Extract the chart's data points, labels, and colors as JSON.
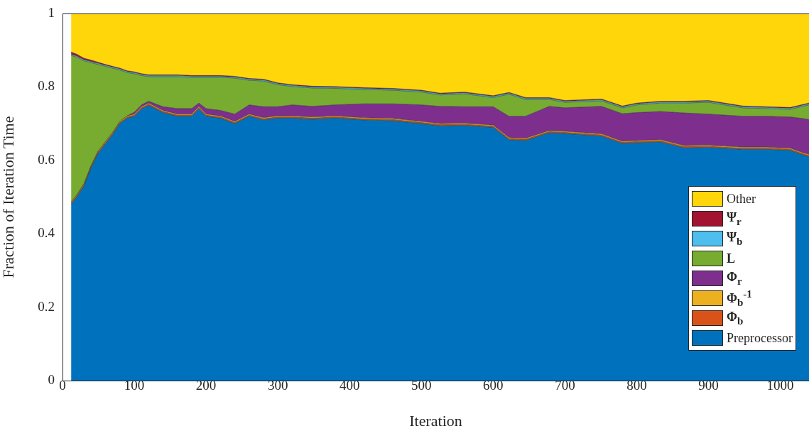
{
  "chart_data": {
    "type": "area",
    "stacked": true,
    "xlabel": "Iteration",
    "ylabel": "Fraction of Iteration Time",
    "x": [
      12,
      20,
      30,
      40,
      50,
      60,
      70,
      80,
      90,
      100,
      110,
      120,
      140,
      160,
      180,
      190,
      200,
      220,
      240,
      260,
      280,
      300,
      320,
      348,
      380,
      420,
      460,
      500,
      526,
      560,
      600,
      622,
      645,
      678,
      700,
      751,
      780,
      800,
      833,
      866,
      900,
      948,
      980,
      1014,
      1031,
      1040
    ],
    "xlim": [
      0,
      1040
    ],
    "xticks": [
      0,
      100,
      200,
      300,
      400,
      500,
      600,
      700,
      800,
      900,
      1000
    ],
    "ylim": [
      0,
      1
    ],
    "yticks": [
      0,
      0.2,
      0.4,
      0.6,
      0.8,
      1
    ],
    "legend": "right",
    "grid": false,
    "series": [
      {
        "name": "Preprocessor",
        "color": "#0072bd",
        "values": [
          0.48,
          0.5,
          0.53,
          0.58,
          0.62,
          0.645,
          0.67,
          0.7,
          0.715,
          0.72,
          0.74,
          0.75,
          0.73,
          0.72,
          0.72,
          0.74,
          0.72,
          0.715,
          0.7,
          0.72,
          0.71,
          0.715,
          0.715,
          0.712,
          0.715,
          0.71,
          0.708,
          0.7,
          0.694,
          0.695,
          0.69,
          0.656,
          0.654,
          0.675,
          0.673,
          0.666,
          0.646,
          0.648,
          0.65,
          0.634,
          0.635,
          0.63,
          0.63,
          0.627,
          0.615,
          0.61
        ]
      },
      {
        "name": "Φ$_{b}$",
        "color": "#d95319",
        "values": [
          0.003,
          0.003,
          0.003,
          0.003,
          0.003,
          0.003,
          0.003,
          0.003,
          0.003,
          0.003,
          0.003,
          0.003,
          0.003,
          0.003,
          0.003,
          0.003,
          0.003,
          0.003,
          0.003,
          0.003,
          0.003,
          0.003,
          0.003,
          0.003,
          0.003,
          0.003,
          0.003,
          0.003,
          0.003,
          0.003,
          0.003,
          0.003,
          0.003,
          0.003,
          0.003,
          0.003,
          0.003,
          0.003,
          0.003,
          0.003,
          0.003,
          0.003,
          0.003,
          0.003,
          0.003,
          0.003
        ]
      },
      {
        "name": "Φ$_{b}$$^{-1}$",
        "color": "#edb120",
        "values": [
          0.003,
          0.003,
          0.003,
          0.003,
          0.003,
          0.003,
          0.003,
          0.003,
          0.003,
          0.003,
          0.003,
          0.003,
          0.003,
          0.003,
          0.003,
          0.003,
          0.003,
          0.003,
          0.003,
          0.003,
          0.003,
          0.003,
          0.003,
          0.003,
          0.003,
          0.003,
          0.003,
          0.003,
          0.003,
          0.003,
          0.003,
          0.003,
          0.003,
          0.003,
          0.003,
          0.003,
          0.003,
          0.003,
          0.003,
          0.003,
          0.003,
          0.003,
          0.003,
          0.003,
          0.003,
          0.003
        ]
      },
      {
        "name": "Φ$_{r}$",
        "color": "#7e2f8e",
        "values": [
          0,
          0,
          0,
          0,
          0,
          0,
          0,
          0,
          0,
          0.005,
          0.005,
          0.005,
          0.01,
          0.015,
          0.015,
          0.01,
          0.015,
          0.015,
          0.02,
          0.025,
          0.03,
          0.025,
          0.03,
          0.029,
          0.03,
          0.038,
          0.04,
          0.045,
          0.047,
          0.045,
          0.05,
          0.058,
          0.06,
          0.066,
          0.064,
          0.075,
          0.075,
          0.076,
          0.077,
          0.089,
          0.085,
          0.084,
          0.084,
          0.085,
          0.093,
          0.095
        ]
      },
      {
        "name": "L",
        "color": "#77ac30",
        "values": [
          0.4,
          0.375,
          0.335,
          0.28,
          0.235,
          0.205,
          0.175,
          0.14,
          0.118,
          0.105,
          0.08,
          0.067,
          0.082,
          0.087,
          0.085,
          0.07,
          0.085,
          0.09,
          0.098,
          0.067,
          0.07,
          0.06,
          0.05,
          0.05,
          0.045,
          0.039,
          0.037,
          0.035,
          0.031,
          0.035,
          0.025,
          0.06,
          0.046,
          0.019,
          0.015,
          0.015,
          0.016,
          0.021,
          0.023,
          0.027,
          0.032,
          0.023,
          0.021,
          0.021,
          0.033,
          0.04
        ]
      },
      {
        "name": "Ψ$_{b}$",
        "color": "#4dbeee",
        "values": [
          0.003,
          0.003,
          0.003,
          0.003,
          0.003,
          0.003,
          0.003,
          0.003,
          0.003,
          0.003,
          0.003,
          0.003,
          0.003,
          0.003,
          0.003,
          0.003,
          0.003,
          0.003,
          0.003,
          0.003,
          0.003,
          0.003,
          0.003,
          0.003,
          0.003,
          0.003,
          0.003,
          0.003,
          0.003,
          0.003,
          0.003,
          0.003,
          0.003,
          0.003,
          0.003,
          0.003,
          0.003,
          0.003,
          0.003,
          0.003,
          0.003,
          0.003,
          0.003,
          0.003,
          0.003,
          0.003
        ]
      },
      {
        "name": "Ψ$_{r}$",
        "color": "#a2142f",
        "values": [
          0.006,
          0.005,
          0.004,
          0.004,
          0.003,
          0.002,
          0.002,
          0.002,
          0.002,
          0.002,
          0.002,
          0.002,
          0.002,
          0.002,
          0.002,
          0.002,
          0.002,
          0.002,
          0.002,
          0.002,
          0.002,
          0.002,
          0.002,
          0.002,
          0.002,
          0.002,
          0.002,
          0.002,
          0.002,
          0.002,
          0.002,
          0.002,
          0.002,
          0.002,
          0.002,
          0.002,
          0.002,
          0.002,
          0.002,
          0.002,
          0.002,
          0.002,
          0.002,
          0.002,
          0.002,
          0.002
        ]
      },
      {
        "name": "Other",
        "color": "#ffd60a",
        "values": [
          0.105,
          0.111,
          0.122,
          0.127,
          0.133,
          0.139,
          0.144,
          0.149,
          0.156,
          0.159,
          0.164,
          0.167,
          0.167,
          0.167,
          0.169,
          0.169,
          0.169,
          0.169,
          0.171,
          0.177,
          0.179,
          0.189,
          0.194,
          0.198,
          0.199,
          0.202,
          0.204,
          0.209,
          0.217,
          0.214,
          0.224,
          0.215,
          0.229,
          0.229,
          0.237,
          0.233,
          0.252,
          0.244,
          0.239,
          0.239,
          0.237,
          0.252,
          0.254,
          0.256,
          0.248,
          0.244
        ]
      }
    ]
  }
}
